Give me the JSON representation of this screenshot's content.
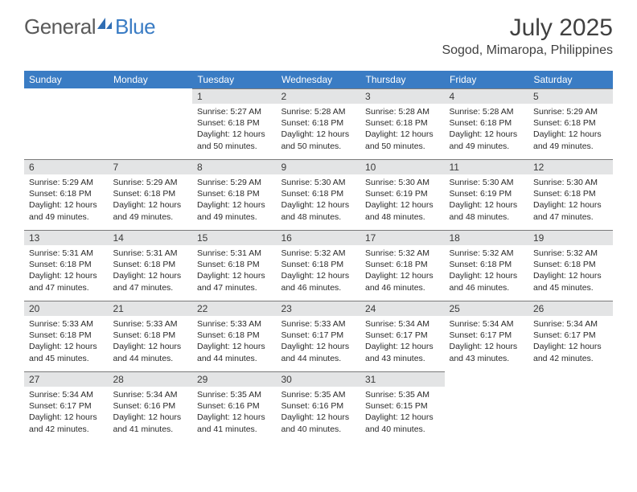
{
  "brand": {
    "part1": "General",
    "part2": "Blue"
  },
  "title": "July 2025",
  "location": "Sogod, Mimaropa, Philippines",
  "colors": {
    "header_bg": "#3a7cc4",
    "header_text": "#ffffff",
    "daynum_bg": "#e3e4e5",
    "border": "#7a7a7a",
    "text": "#2a2a2a",
    "brand_gray": "#5a5a5a",
    "brand_blue": "#3a7cc4",
    "page_bg": "#ffffff"
  },
  "weekdays": [
    "Sunday",
    "Monday",
    "Tuesday",
    "Wednesday",
    "Thursday",
    "Friday",
    "Saturday"
  ],
  "leading_blanks": 2,
  "days": [
    {
      "n": "1",
      "sunrise": "5:27 AM",
      "sunset": "6:18 PM",
      "daylight": "12 hours and 50 minutes."
    },
    {
      "n": "2",
      "sunrise": "5:28 AM",
      "sunset": "6:18 PM",
      "daylight": "12 hours and 50 minutes."
    },
    {
      "n": "3",
      "sunrise": "5:28 AM",
      "sunset": "6:18 PM",
      "daylight": "12 hours and 50 minutes."
    },
    {
      "n": "4",
      "sunrise": "5:28 AM",
      "sunset": "6:18 PM",
      "daylight": "12 hours and 49 minutes."
    },
    {
      "n": "5",
      "sunrise": "5:29 AM",
      "sunset": "6:18 PM",
      "daylight": "12 hours and 49 minutes."
    },
    {
      "n": "6",
      "sunrise": "5:29 AM",
      "sunset": "6:18 PM",
      "daylight": "12 hours and 49 minutes."
    },
    {
      "n": "7",
      "sunrise": "5:29 AM",
      "sunset": "6:18 PM",
      "daylight": "12 hours and 49 minutes."
    },
    {
      "n": "8",
      "sunrise": "5:29 AM",
      "sunset": "6:18 PM",
      "daylight": "12 hours and 49 minutes."
    },
    {
      "n": "9",
      "sunrise": "5:30 AM",
      "sunset": "6:18 PM",
      "daylight": "12 hours and 48 minutes."
    },
    {
      "n": "10",
      "sunrise": "5:30 AM",
      "sunset": "6:19 PM",
      "daylight": "12 hours and 48 minutes."
    },
    {
      "n": "11",
      "sunrise": "5:30 AM",
      "sunset": "6:19 PM",
      "daylight": "12 hours and 48 minutes."
    },
    {
      "n": "12",
      "sunrise": "5:30 AM",
      "sunset": "6:18 PM",
      "daylight": "12 hours and 47 minutes."
    },
    {
      "n": "13",
      "sunrise": "5:31 AM",
      "sunset": "6:18 PM",
      "daylight": "12 hours and 47 minutes."
    },
    {
      "n": "14",
      "sunrise": "5:31 AM",
      "sunset": "6:18 PM",
      "daylight": "12 hours and 47 minutes."
    },
    {
      "n": "15",
      "sunrise": "5:31 AM",
      "sunset": "6:18 PM",
      "daylight": "12 hours and 47 minutes."
    },
    {
      "n": "16",
      "sunrise": "5:32 AM",
      "sunset": "6:18 PM",
      "daylight": "12 hours and 46 minutes."
    },
    {
      "n": "17",
      "sunrise": "5:32 AM",
      "sunset": "6:18 PM",
      "daylight": "12 hours and 46 minutes."
    },
    {
      "n": "18",
      "sunrise": "5:32 AM",
      "sunset": "6:18 PM",
      "daylight": "12 hours and 46 minutes."
    },
    {
      "n": "19",
      "sunrise": "5:32 AM",
      "sunset": "6:18 PM",
      "daylight": "12 hours and 45 minutes."
    },
    {
      "n": "20",
      "sunrise": "5:33 AM",
      "sunset": "6:18 PM",
      "daylight": "12 hours and 45 minutes."
    },
    {
      "n": "21",
      "sunrise": "5:33 AM",
      "sunset": "6:18 PM",
      "daylight": "12 hours and 44 minutes."
    },
    {
      "n": "22",
      "sunrise": "5:33 AM",
      "sunset": "6:18 PM",
      "daylight": "12 hours and 44 minutes."
    },
    {
      "n": "23",
      "sunrise": "5:33 AM",
      "sunset": "6:17 PM",
      "daylight": "12 hours and 44 minutes."
    },
    {
      "n": "24",
      "sunrise": "5:34 AM",
      "sunset": "6:17 PM",
      "daylight": "12 hours and 43 minutes."
    },
    {
      "n": "25",
      "sunrise": "5:34 AM",
      "sunset": "6:17 PM",
      "daylight": "12 hours and 43 minutes."
    },
    {
      "n": "26",
      "sunrise": "5:34 AM",
      "sunset": "6:17 PM",
      "daylight": "12 hours and 42 minutes."
    },
    {
      "n": "27",
      "sunrise": "5:34 AM",
      "sunset": "6:17 PM",
      "daylight": "12 hours and 42 minutes."
    },
    {
      "n": "28",
      "sunrise": "5:34 AM",
      "sunset": "6:16 PM",
      "daylight": "12 hours and 41 minutes."
    },
    {
      "n": "29",
      "sunrise": "5:35 AM",
      "sunset": "6:16 PM",
      "daylight": "12 hours and 41 minutes."
    },
    {
      "n": "30",
      "sunrise": "5:35 AM",
      "sunset": "6:16 PM",
      "daylight": "12 hours and 40 minutes."
    },
    {
      "n": "31",
      "sunrise": "5:35 AM",
      "sunset": "6:15 PM",
      "daylight": "12 hours and 40 minutes."
    }
  ],
  "labels": {
    "sunrise": "Sunrise:",
    "sunset": "Sunset:",
    "daylight": "Daylight:"
  }
}
